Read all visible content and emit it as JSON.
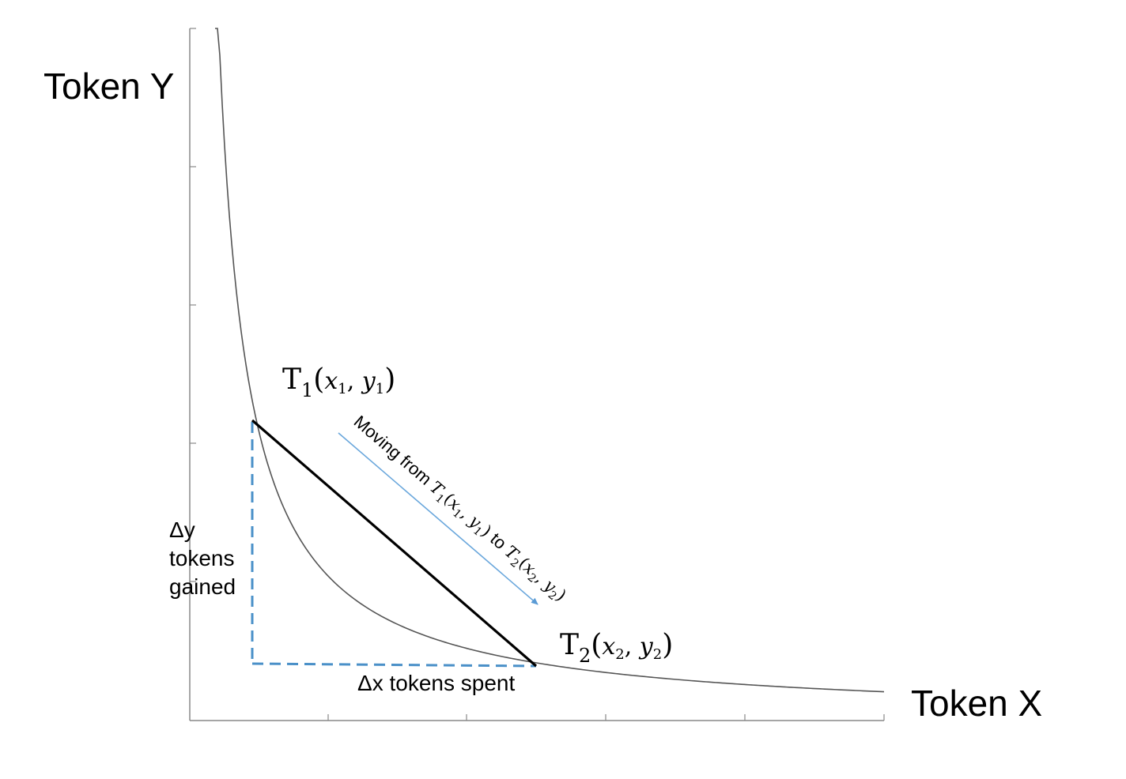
{
  "axes": {
    "y_title": "Token Y",
    "x_title": "Token X"
  },
  "points": {
    "t1": {
      "symbol": "T",
      "index": "1",
      "x_var": "x",
      "y_var": "y"
    },
    "t2": {
      "symbol": "T",
      "index": "2",
      "x_var": "x",
      "y_var": "y"
    }
  },
  "arrow_label": {
    "prefix": "Moving from ",
    "middle": " to "
  },
  "delta_y_label": [
    "Δy",
    "tokens",
    "gained"
  ],
  "delta_x_label": "Δx tokens spent",
  "colors": {
    "curve": "#555555",
    "axis": "#888888",
    "chord": "#000000",
    "dashed": "#4a90c8",
    "arrow": "#6aa7dc"
  }
}
